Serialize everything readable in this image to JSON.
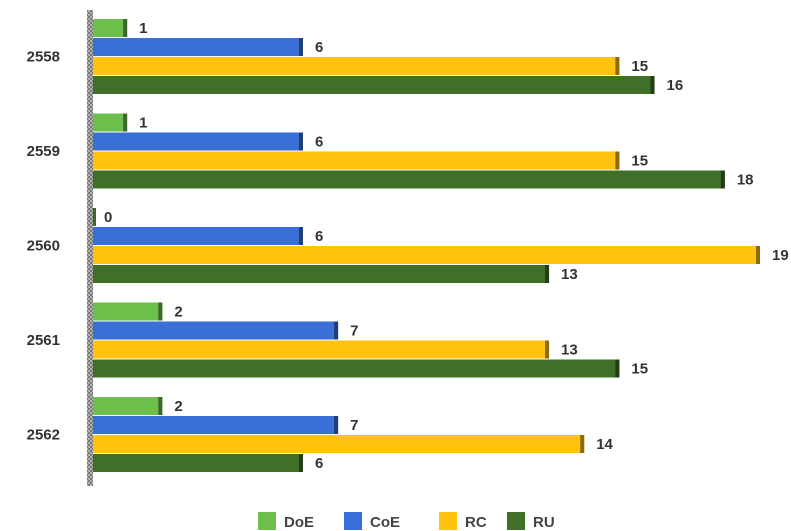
{
  "chart_data": {
    "type": "bar",
    "orientation": "horizontal",
    "categories": [
      "2558",
      "2559",
      "2560",
      "2561",
      "2562"
    ],
    "series": [
      {
        "name": "DoE",
        "color": "#6cbf4a",
        "values": [
          1,
          1,
          0,
          2,
          2
        ]
      },
      {
        "name": "CoE",
        "color": "#3a6fd8",
        "values": [
          6,
          6,
          6,
          7,
          7
        ]
      },
      {
        "name": "RC",
        "color": "#ffc20e",
        "values": [
          15,
          15,
          19,
          13,
          14
        ]
      },
      {
        "name": "RU",
        "color": "#3f6f28",
        "values": [
          16,
          18,
          13,
          15,
          6
        ]
      }
    ],
    "xlim": [
      0,
      19
    ],
    "grid": false,
    "legend_position": "bottom"
  }
}
